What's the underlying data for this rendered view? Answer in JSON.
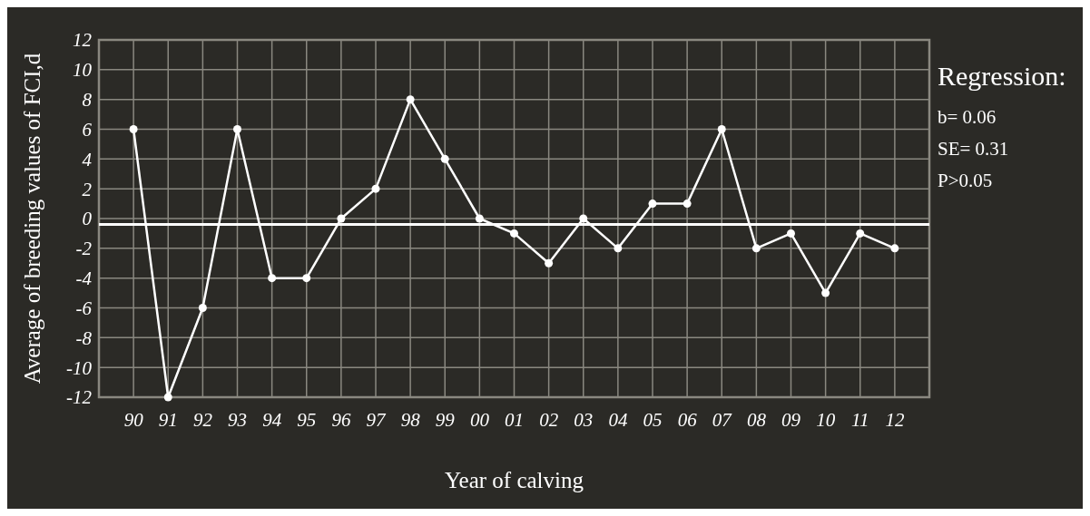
{
  "chart_data": {
    "type": "line",
    "xlabel": "Year of calving",
    "ylabel": "Average of breeding values of FCI,d",
    "categories": [
      "90",
      "91",
      "92",
      "93",
      "94",
      "95",
      "96",
      "97",
      "98",
      "99",
      "00",
      "01",
      "02",
      "03",
      "04",
      "05",
      "06",
      "07",
      "08",
      "09",
      "10",
      "11",
      "12"
    ],
    "series": [
      {
        "color": "#ffffff",
        "values": [
          6,
          -12,
          -6,
          6,
          -4,
          -4,
          0,
          2,
          8,
          4,
          0,
          -1,
          -3,
          0,
          -2,
          1,
          1,
          6,
          -2,
          -1,
          -5,
          -1,
          -2
        ]
      }
    ],
    "ylim": [
      -12,
      12
    ],
    "yticks": [
      -12,
      -10,
      -8,
      -6,
      -4,
      -2,
      0,
      2,
      4,
      6,
      8,
      10,
      12
    ],
    "grid": true,
    "marker": "circle",
    "line_style": "solid",
    "ref_lines": [
      {
        "axis": "y",
        "value": -0.4,
        "color": "#ffffff"
      }
    ],
    "annotations": [
      "Regression:",
      "b= 0.06",
      "SE= 0.31",
      "P>0.05"
    ]
  }
}
